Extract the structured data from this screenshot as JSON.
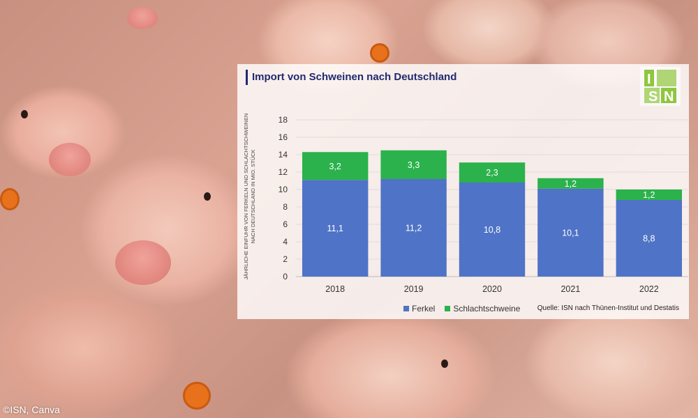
{
  "copyright": "©ISN, Canva",
  "chart_data": {
    "type": "bar",
    "stacked": true,
    "title": "Import von Schweinen nach Deutschland",
    "ylabel_line1": "JÄHRLICHE EINFUHR VON FERKELN UND SCHLACHTSCHWEINEN",
    "ylabel_line2": "NACH DEUTSCHLAND IN MIO. STÜCK",
    "ylim": [
      0,
      18
    ],
    "yticks": [
      "0",
      "2",
      "4",
      "6",
      "8",
      "10",
      "12",
      "14",
      "16",
      "18"
    ],
    "grid": true,
    "categories": [
      "2018",
      "2019",
      "2020",
      "2021",
      "2022"
    ],
    "series": [
      {
        "name": "Ferkel",
        "color": "#4f73c6",
        "values": [
          11.1,
          11.2,
          10.8,
          10.1,
          8.8
        ],
        "labels": [
          "11,1",
          "11,2",
          "10,8",
          "10,1",
          "8,8"
        ]
      },
      {
        "name": "Schlachtschweine",
        "color": "#2bb24c",
        "values": [
          3.2,
          3.3,
          2.3,
          1.2,
          1.2
        ],
        "labels": [
          "3,2",
          "3,3",
          "2,3",
          "1,2",
          "1,2"
        ]
      }
    ],
    "legend_position": "bottom",
    "source": "Quelle: ISN nach Thünen-Institut und Destatis",
    "logo_text": "ISN"
  }
}
